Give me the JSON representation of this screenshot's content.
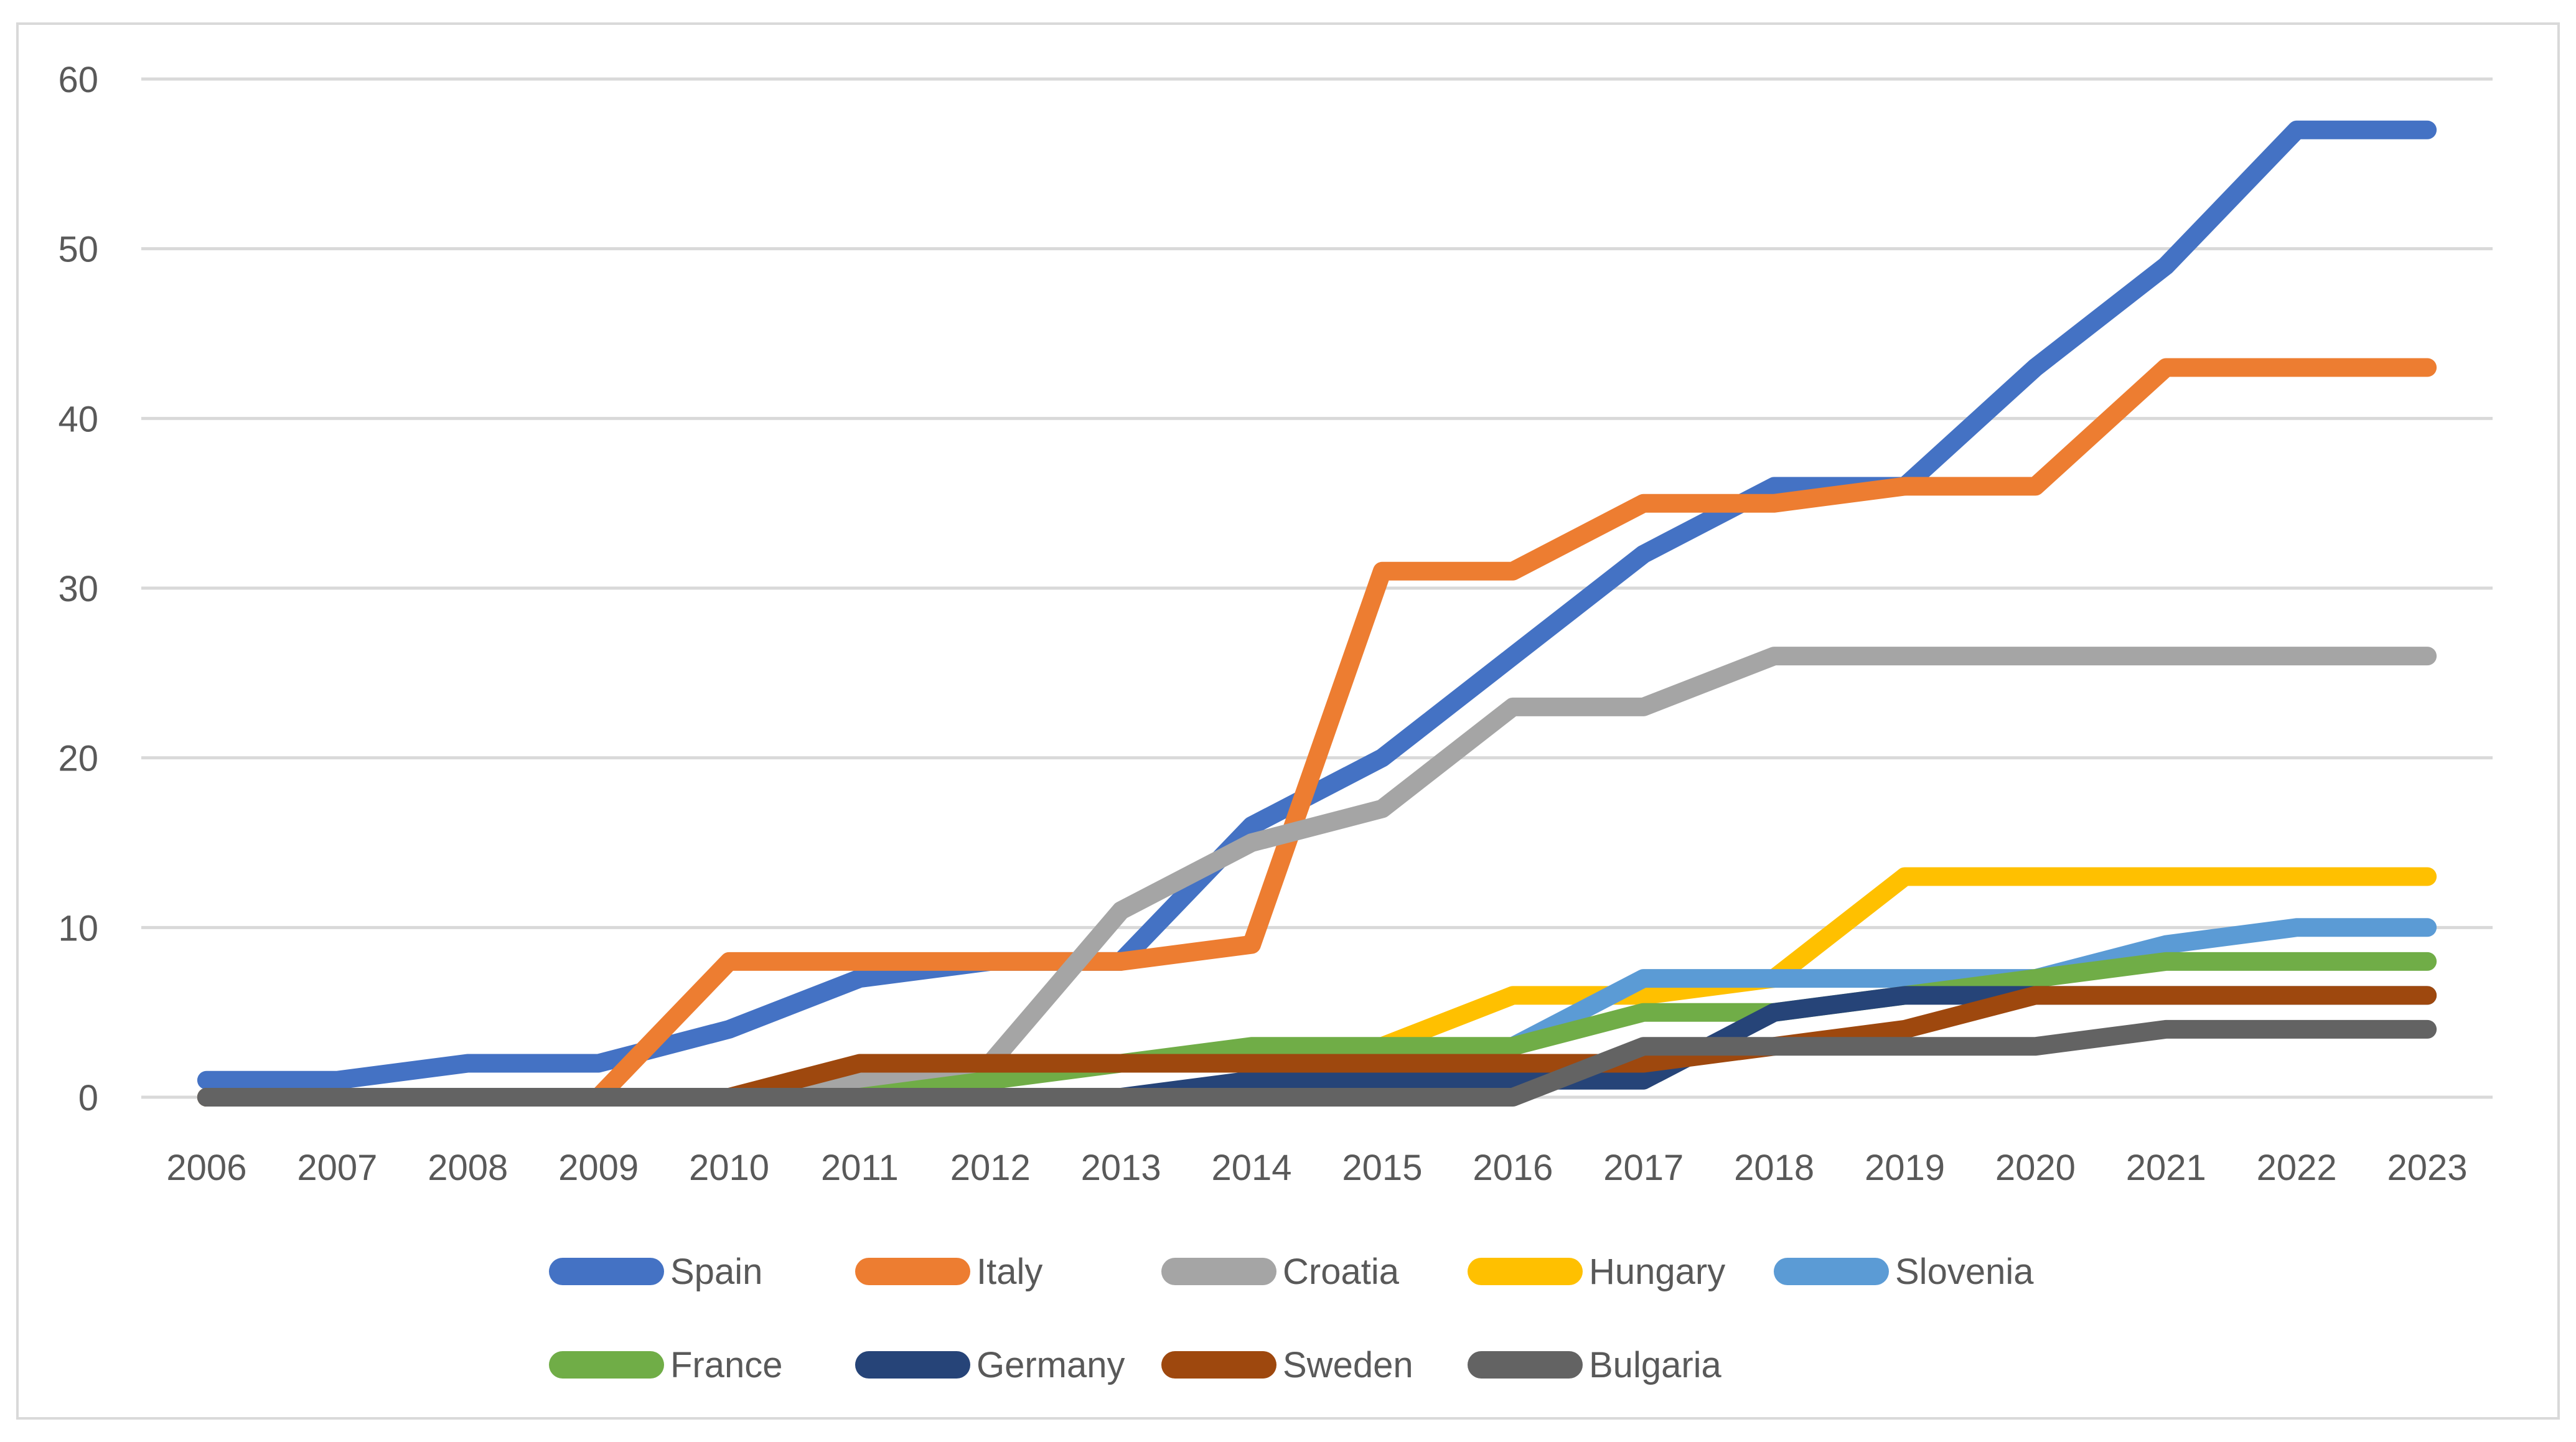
{
  "chart_data": {
    "type": "line",
    "title": "",
    "xlabel": "",
    "ylabel": "",
    "categories": [
      "2006",
      "2007",
      "2008",
      "2009",
      "2010",
      "2011",
      "2012",
      "2013",
      "2014",
      "2015",
      "2016",
      "2017",
      "2018",
      "2019",
      "2020",
      "2021",
      "2022",
      "2023"
    ],
    "y_ticks": [
      0,
      10,
      20,
      30,
      40,
      50,
      60
    ],
    "ylim": [
      0,
      60
    ],
    "grid": true,
    "legend_position": "bottom",
    "gridline_color": "#D9D9D9",
    "axis_text_color": "#595959",
    "series": [
      {
        "name": "Spain",
        "color": "#4472C4",
        "values": [
          1,
          1,
          2,
          2,
          4,
          7,
          8,
          8,
          16,
          20,
          26,
          32,
          36,
          36,
          43,
          49,
          57,
          57
        ]
      },
      {
        "name": "Italy",
        "color": "#ED7D31",
        "values": [
          0,
          0,
          0,
          0,
          8,
          8,
          8,
          8,
          9,
          31,
          31,
          35,
          35,
          36,
          36,
          43,
          43,
          43
        ]
      },
      {
        "name": "Croatia",
        "color": "#A5A5A5",
        "values": [
          0,
          0,
          0,
          0,
          0,
          1,
          2,
          11,
          15,
          17,
          23,
          23,
          26,
          26,
          26,
          26,
          26,
          26
        ]
      },
      {
        "name": "Hungary",
        "color": "#FFC000",
        "values": [
          0,
          0,
          0,
          0,
          0,
          0,
          0,
          0,
          0,
          3,
          6,
          6,
          7,
          13,
          13,
          13,
          13,
          13
        ]
      },
      {
        "name": "Slovenia",
        "color": "#5B9BD5",
        "values": [
          0,
          0,
          0,
          0,
          0,
          0,
          0,
          0,
          0,
          1,
          3,
          7,
          7,
          7,
          7,
          9,
          10,
          10
        ]
      },
      {
        "name": "France",
        "color": "#70AD47",
        "values": [
          0,
          0,
          0,
          0,
          0,
          0,
          1,
          2,
          3,
          3,
          3,
          5,
          5,
          6,
          7,
          8,
          8,
          8
        ]
      },
      {
        "name": "Germany",
        "color": "#264478",
        "values": [
          0,
          0,
          0,
          0,
          0,
          0,
          0,
          0,
          1,
          1,
          1,
          1,
          5,
          6,
          6,
          6,
          6,
          6
        ]
      },
      {
        "name": "Sweden",
        "color": "#9E480E",
        "values": [
          0,
          0,
          0,
          0,
          0,
          2,
          2,
          2,
          2,
          2,
          2,
          2,
          3,
          4,
          6,
          6,
          6,
          6
        ]
      },
      {
        "name": "Bulgaria",
        "color": "#636363",
        "values": [
          0,
          0,
          0,
          0,
          0,
          0,
          0,
          0,
          0,
          0,
          0,
          3,
          3,
          3,
          3,
          4,
          4,
          4
        ]
      }
    ]
  }
}
